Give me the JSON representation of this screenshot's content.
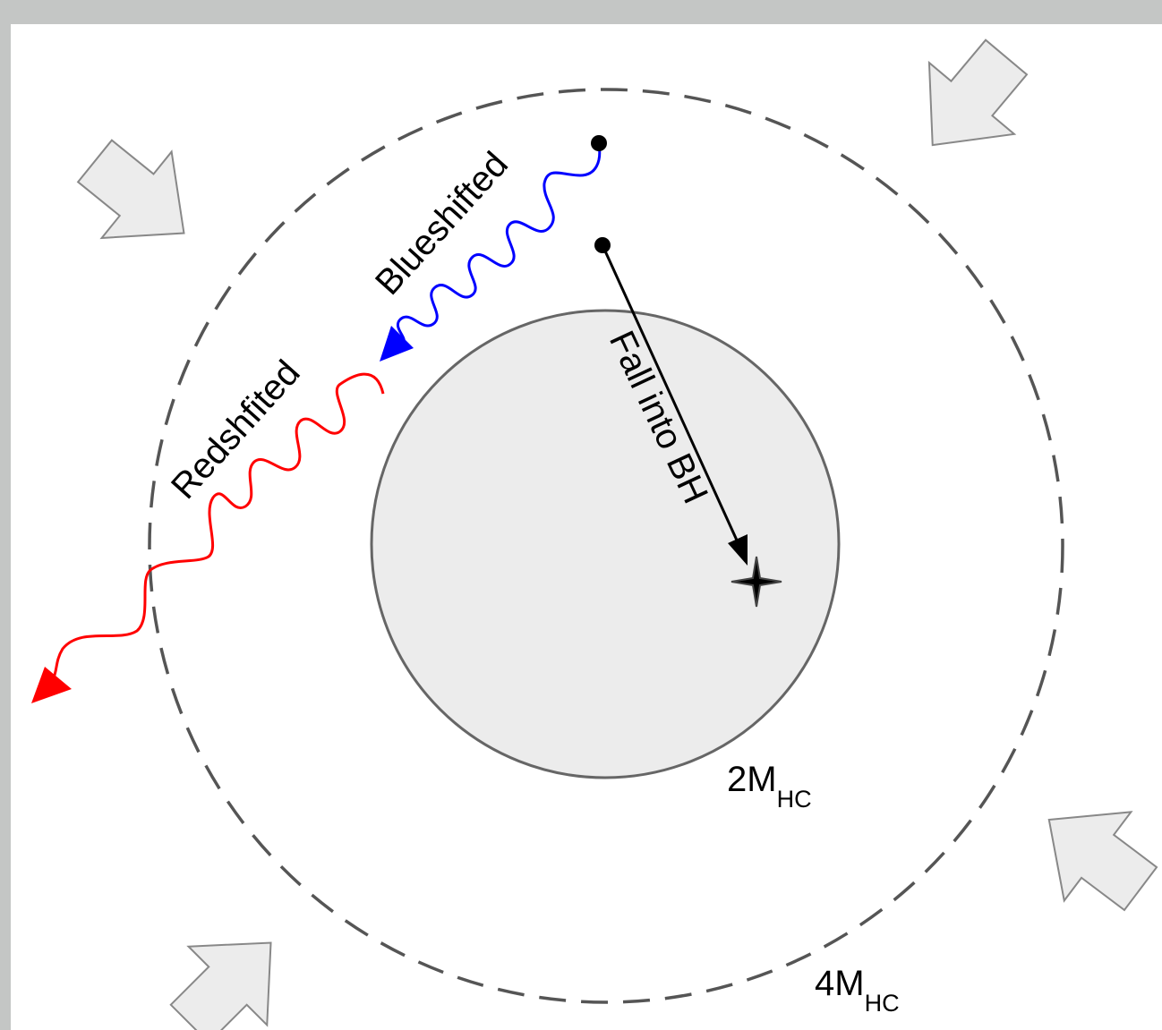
{
  "labels": {
    "blueshifted": "Blueshifted",
    "redshifted": "Redshfited",
    "fall": "Fall into BH",
    "inner_radius": {
      "main": "2M",
      "sub": "HC"
    },
    "outer_radius": {
      "main": "4M",
      "sub": "HC"
    }
  },
  "colors": {
    "background": "#c4c6c5",
    "canvas": "#ffffff",
    "black_hole_fill": "#ececec",
    "black_hole_stroke": "#666666",
    "outer_ring": "#555555",
    "blue_photon": "#0000ff",
    "red_photon": "#ff0000",
    "infall_path": "#000000",
    "arrow_fill": "#ececec",
    "arrow_stroke": "#888888"
  },
  "icons": {
    "singularity": "four-point-star-icon",
    "inflow": "block-arrow-icon"
  }
}
